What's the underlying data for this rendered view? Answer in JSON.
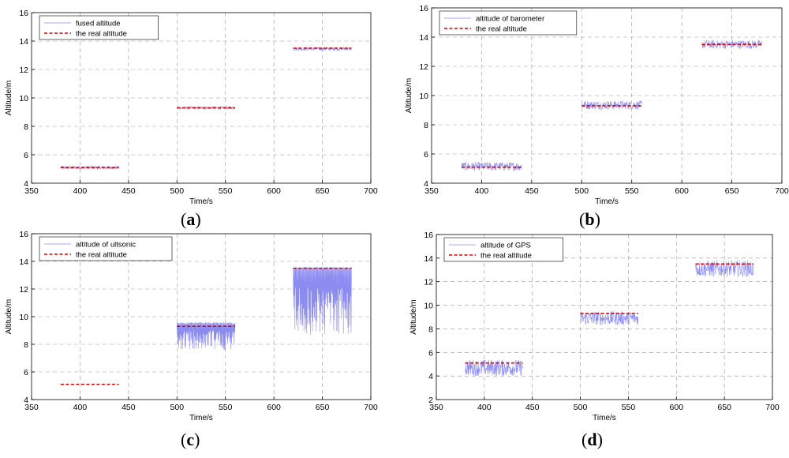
{
  "chart_data": [
    {
      "panel": "(a)",
      "label_letter": "a",
      "type": "line",
      "xlabel": "Time/s",
      "ylabel": "Altitude/m",
      "xlim": [
        350,
        700
      ],
      "ylim": [
        4,
        16
      ],
      "xticks": [
        350,
        400,
        450,
        500,
        550,
        600,
        650,
        700
      ],
      "yticks": [
        4,
        6,
        8,
        10,
        12,
        14,
        16
      ],
      "grid": true,
      "legend_position": "top-left",
      "series": [
        {
          "name": "fused altitude",
          "color": "#8c8cf0",
          "style": "solid",
          "kind": "noisy",
          "segments": [
            {
              "x_start": 380,
              "x_end": 440,
              "level": 5.1,
              "noise": 0.12
            },
            {
              "x_start": 500,
              "x_end": 560,
              "level": 9.3,
              "noise": 0.1
            },
            {
              "x_start": 620,
              "x_end": 680,
              "level": 13.45,
              "noise": 0.12
            }
          ]
        },
        {
          "name": "the real altitude",
          "color": "#e00000",
          "style": "dashed",
          "kind": "step",
          "segments": [
            {
              "x_start": 380,
              "x_end": 440,
              "level": 5.1
            },
            {
              "x_start": 500,
              "x_end": 560,
              "level": 9.3
            },
            {
              "x_start": 620,
              "x_end": 680,
              "level": 13.5
            }
          ]
        }
      ]
    },
    {
      "panel": "(b)",
      "label_letter": "b",
      "type": "line",
      "xlabel": "Time/s",
      "ylabel": "Altitude/m",
      "xlim": [
        350,
        700
      ],
      "ylim": [
        4,
        16
      ],
      "xticks": [
        350,
        400,
        450,
        500,
        550,
        600,
        650,
        700
      ],
      "yticks": [
        4,
        6,
        8,
        10,
        12,
        14,
        16
      ],
      "grid": true,
      "legend_position": "top-left",
      "series": [
        {
          "name": "altitude of barometer",
          "color": "#8c8cf0",
          "style": "solid",
          "kind": "noisy",
          "segments": [
            {
              "x_start": 380,
              "x_end": 440,
              "level": 5.15,
              "noise": 0.3
            },
            {
              "x_start": 500,
              "x_end": 560,
              "level": 9.35,
              "noise": 0.3
            },
            {
              "x_start": 620,
              "x_end": 680,
              "level": 13.5,
              "noise": 0.3
            }
          ]
        },
        {
          "name": "the real altitude",
          "color": "#e00000",
          "style": "dashed",
          "kind": "step",
          "segments": [
            {
              "x_start": 380,
              "x_end": 440,
              "level": 5.1
            },
            {
              "x_start": 500,
              "x_end": 560,
              "level": 9.3
            },
            {
              "x_start": 620,
              "x_end": 680,
              "level": 13.5
            }
          ]
        }
      ]
    },
    {
      "panel": "(c)",
      "label_letter": "c",
      "type": "line",
      "xlabel": "Time/s",
      "ylabel": "Altitude/m",
      "xlim": [
        350,
        700
      ],
      "ylim": [
        4,
        16
      ],
      "xticks": [
        350,
        400,
        450,
        500,
        550,
        600,
        650,
        700
      ],
      "yticks": [
        4,
        6,
        8,
        10,
        12,
        14,
        16
      ],
      "grid": true,
      "legend_position": "top-left",
      "series": [
        {
          "name": "altitude of ultsonic",
          "color": "#8c8cf0",
          "style": "solid",
          "kind": "spiky",
          "segments": [
            {
              "x_start": 500,
              "x_end": 560,
              "level": 9.6,
              "min": 7.6
            },
            {
              "x_start": 620,
              "x_end": 680,
              "level": 13.6,
              "min": 8.6
            }
          ]
        },
        {
          "name": "the real altitude",
          "color": "#e00000",
          "style": "dashed",
          "kind": "step",
          "segments": [
            {
              "x_start": 380,
              "x_end": 440,
              "level": 5.1
            },
            {
              "x_start": 500,
              "x_end": 560,
              "level": 9.3
            },
            {
              "x_start": 620,
              "x_end": 680,
              "level": 13.5
            }
          ]
        }
      ]
    },
    {
      "panel": "(d)",
      "label_letter": "d",
      "type": "line",
      "xlabel": "Time/s",
      "ylabel": "Altitude/m",
      "xlim": [
        350,
        700
      ],
      "ylim": [
        2,
        16
      ],
      "xticks": [
        350,
        400,
        450,
        500,
        550,
        600,
        650,
        700
      ],
      "yticks": [
        2,
        4,
        6,
        8,
        10,
        12,
        14,
        16
      ],
      "grid": true,
      "legend_position": "top-left",
      "series": [
        {
          "name": "altitude of GPS",
          "color": "#8c8cf0",
          "style": "solid",
          "kind": "noisy",
          "segments": [
            {
              "x_start": 380,
              "x_end": 440,
              "level": 4.7,
              "noise": 0.7
            },
            {
              "x_start": 500,
              "x_end": 560,
              "level": 8.9,
              "noise": 0.6
            },
            {
              "x_start": 620,
              "x_end": 680,
              "level": 13.1,
              "noise": 0.7
            }
          ]
        },
        {
          "name": "the real altitude",
          "color": "#e00000",
          "style": "dashed",
          "kind": "step",
          "segments": [
            {
              "x_start": 380,
              "x_end": 440,
              "level": 5.1
            },
            {
              "x_start": 500,
              "x_end": 560,
              "level": 9.3
            },
            {
              "x_start": 620,
              "x_end": 680,
              "level": 13.5
            }
          ]
        }
      ]
    }
  ]
}
